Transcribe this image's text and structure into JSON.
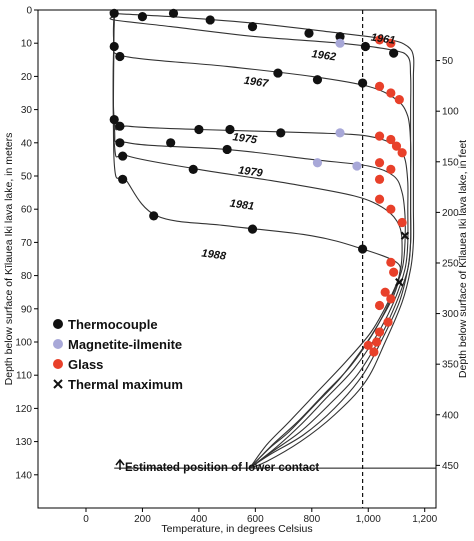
{
  "chart_data": {
    "type": "scatter",
    "xlabel": "Temperature, in degrees Celsius",
    "ylabel_left": "Depth below surface of Kīlauea Iki lava lake, in meters",
    "ylabel_right": "Depth below surface of Kīlauea Iki lava lake, in feet",
    "xlim": [
      -170,
      1240
    ],
    "ylim_m": [
      0,
      150
    ],
    "x_ticks": [
      {
        "value": 0,
        "label": "0"
      },
      {
        "value": 200,
        "label": "200"
      },
      {
        "value": 400,
        "label": "400"
      },
      {
        "value": 600,
        "label": "600"
      },
      {
        "value": 800,
        "label": "800"
      },
      {
        "value": 1000,
        "label": "1,000"
      },
      {
        "value": 1200,
        "label": "1,200"
      }
    ],
    "y_ticks_m": [
      0,
      10,
      20,
      30,
      40,
      50,
      60,
      70,
      80,
      90,
      100,
      110,
      120,
      130,
      140
    ],
    "y_ticks_ft": [
      50,
      100,
      150,
      200,
      250,
      300,
      350,
      400,
      450
    ],
    "reference_line_x": 980,
    "colors": {
      "thermocouple": "#111111",
      "magnetite": "#a8a8d8",
      "glass": "#e8402a",
      "curve": "#333333"
    },
    "legend": {
      "placement": "left-center",
      "items": [
        {
          "marker": "thermocouple",
          "label": "Thermocouple"
        },
        {
          "marker": "magnetite",
          "label": "Magnetite-ilmenite"
        },
        {
          "marker": "glass",
          "label": "Glass"
        },
        {
          "marker": "thermal-max",
          "label": "Thermal maximum"
        }
      ]
    },
    "annotation": "Estimated position of lower contact",
    "lower_contact_depth_m": 138,
    "series": [
      {
        "name": "1961",
        "label_at": [
          1010,
          8
        ],
        "thermocouple": [
          [
            100,
            1
          ],
          [
            200,
            2
          ],
          [
            310,
            1
          ],
          [
            440,
            3
          ],
          [
            590,
            5
          ],
          [
            790,
            7
          ],
          [
            900,
            8
          ]
        ],
        "magnetite": [],
        "glass": [],
        "curve": [
          [
            100,
            0
          ],
          [
            100,
            1
          ],
          [
            300,
            2
          ],
          [
            600,
            4
          ],
          [
            900,
            7
          ],
          [
            1080,
            9
          ],
          [
            1140,
            11
          ],
          [
            1160,
            14
          ],
          [
            1160,
            20
          ],
          [
            1160,
            28
          ],
          [
            1160,
            36
          ],
          [
            1160,
            44
          ],
          [
            1160,
            52
          ],
          [
            1160,
            60
          ],
          [
            1160,
            70
          ],
          [
            1150,
            78
          ],
          [
            1120,
            88
          ],
          [
            1060,
            100
          ],
          [
            990,
            112
          ],
          [
            880,
            122
          ],
          [
            760,
            130
          ],
          [
            640,
            136
          ],
          [
            580,
            138
          ]
        ]
      },
      {
        "name": "1962",
        "label_at": [
          800,
          13
        ],
        "thermocouple": [
          [
            990,
            11
          ],
          [
            1090,
            13
          ]
        ],
        "magnetite": [
          [
            900,
            10
          ]
        ],
        "glass": [
          [
            1040,
            9
          ],
          [
            1080,
            10
          ]
        ],
        "curve": [
          [
            100,
            2
          ],
          [
            100,
            3
          ],
          [
            300,
            5
          ],
          [
            600,
            8
          ],
          [
            900,
            10
          ],
          [
            1080,
            12
          ],
          [
            1140,
            14
          ],
          [
            1150,
            20
          ],
          [
            1150,
            30
          ],
          [
            1150,
            40
          ],
          [
            1150,
            50
          ],
          [
            1150,
            60
          ],
          [
            1150,
            70
          ],
          [
            1140,
            78
          ],
          [
            1110,
            88
          ],
          [
            1050,
            99
          ],
          [
            980,
            110
          ],
          [
            880,
            120
          ],
          [
            770,
            128
          ],
          [
            650,
            134
          ],
          [
            580,
            138
          ]
        ]
      },
      {
        "name": "1967",
        "label_at": [
          560,
          21
        ],
        "thermocouple": [
          [
            100,
            11
          ],
          [
            120,
            14
          ],
          [
            680,
            19
          ],
          [
            820,
            21
          ],
          [
            980,
            22
          ]
        ],
        "magnetite": [],
        "glass": [
          [
            1040,
            23
          ],
          [
            1080,
            25
          ],
          [
            1110,
            27
          ]
        ],
        "curve": [
          [
            100,
            0
          ],
          [
            100,
            10
          ],
          [
            140,
            14
          ],
          [
            500,
            17
          ],
          [
            800,
            20
          ],
          [
            1000,
            23
          ],
          [
            1100,
            27
          ],
          [
            1140,
            32
          ],
          [
            1150,
            40
          ],
          [
            1150,
            50
          ],
          [
            1150,
            60
          ],
          [
            1150,
            70
          ],
          [
            1140,
            78
          ],
          [
            1100,
            88
          ],
          [
            1040,
            99
          ],
          [
            960,
            110
          ],
          [
            860,
            119
          ],
          [
            760,
            127
          ],
          [
            660,
            133
          ],
          [
            580,
            138
          ]
        ]
      },
      {
        "name": "1975",
        "label_at": [
          520,
          38
        ],
        "thermocouple": [
          [
            100,
            33
          ],
          [
            120,
            35
          ],
          [
            400,
            36
          ],
          [
            510,
            36
          ],
          [
            690,
            37
          ]
        ],
        "magnetite": [
          [
            900,
            37
          ]
        ],
        "glass": [
          [
            1040,
            38
          ],
          [
            1080,
            39
          ],
          [
            1100,
            41
          ],
          [
            1120,
            43
          ]
        ],
        "curve": [
          [
            100,
            0
          ],
          [
            100,
            33
          ],
          [
            150,
            35
          ],
          [
            400,
            36
          ],
          [
            800,
            37
          ],
          [
            1000,
            38
          ],
          [
            1100,
            41
          ],
          [
            1130,
            45
          ],
          [
            1140,
            52
          ],
          [
            1140,
            60
          ],
          [
            1140,
            70
          ],
          [
            1130,
            78
          ],
          [
            1090,
            88
          ],
          [
            1030,
            98
          ],
          [
            950,
            108
          ],
          [
            850,
            117
          ],
          [
            760,
            125
          ],
          [
            670,
            132
          ],
          [
            580,
            138
          ]
        ]
      },
      {
        "name": "1979",
        "label_at": [
          540,
          48
        ],
        "thermocouple": [
          [
            120,
            40
          ],
          [
            300,
            40
          ],
          [
            500,
            42
          ]
        ],
        "magnetite": [
          [
            820,
            46
          ],
          [
            960,
            47
          ]
        ],
        "glass": [
          [
            1040,
            46
          ],
          [
            1080,
            48
          ]
        ],
        "curve": [
          [
            100,
            0
          ],
          [
            100,
            35
          ],
          [
            150,
            40
          ],
          [
            500,
            42
          ],
          [
            800,
            45
          ],
          [
            1000,
            47
          ],
          [
            1090,
            50
          ],
          [
            1120,
            55
          ],
          [
            1130,
            62
          ],
          [
            1130,
            70
          ],
          [
            1120,
            78
          ],
          [
            1080,
            87
          ],
          [
            1020,
            97
          ],
          [
            940,
            107
          ],
          [
            840,
            116
          ],
          [
            750,
            124
          ],
          [
            660,
            131
          ],
          [
            580,
            138
          ]
        ]
      },
      {
        "name": "1981",
        "label_at": [
          510,
          58
        ],
        "thermocouple": [
          [
            130,
            44
          ],
          [
            380,
            48
          ]
        ],
        "magnetite": [],
        "glass": [
          [
            1040,
            51
          ],
          [
            1040,
            57
          ],
          [
            1080,
            60
          ]
        ],
        "curve": [
          [
            100,
            0
          ],
          [
            100,
            40
          ],
          [
            150,
            44
          ],
          [
            400,
            48
          ],
          [
            700,
            52
          ],
          [
            950,
            56
          ],
          [
            1060,
            60
          ],
          [
            1110,
            65
          ],
          [
            1120,
            72
          ],
          [
            1110,
            80
          ],
          [
            1070,
            88
          ],
          [
            1010,
            97
          ],
          [
            920,
            106
          ],
          [
            820,
            115
          ],
          [
            720,
            124
          ],
          [
            640,
            131
          ],
          [
            580,
            138
          ]
        ]
      },
      {
        "name": "1988",
        "label_at": [
          410,
          73
        ],
        "thermocouple": [
          [
            130,
            51
          ],
          [
            240,
            62
          ],
          [
            590,
            66
          ],
          [
            980,
            72
          ]
        ],
        "magnetite": [],
        "glass": [
          [
            1120,
            64
          ],
          [
            1080,
            76
          ],
          [
            1090,
            79
          ],
          [
            1060,
            85
          ],
          [
            1080,
            87
          ],
          [
            1040,
            89
          ],
          [
            1070,
            94
          ],
          [
            1040,
            97
          ],
          [
            1030,
            100
          ],
          [
            1000,
            101
          ],
          [
            1020,
            103
          ]
        ],
        "curve": [
          [
            100,
            0
          ],
          [
            100,
            46
          ],
          [
            140,
            51
          ],
          [
            250,
            62
          ],
          [
            500,
            65
          ],
          [
            800,
            68
          ],
          [
            980,
            72
          ],
          [
            1100,
            76
          ],
          [
            1110,
            80
          ],
          [
            1090,
            86
          ],
          [
            1040,
            94
          ],
          [
            980,
            102
          ],
          [
            900,
            111
          ],
          [
            810,
            119
          ],
          [
            720,
            127
          ],
          [
            650,
            132
          ],
          [
            580,
            138
          ]
        ]
      }
    ],
    "thermal_maxima": [
      [
        1130,
        68
      ],
      [
        1110,
        82
      ]
    ]
  }
}
